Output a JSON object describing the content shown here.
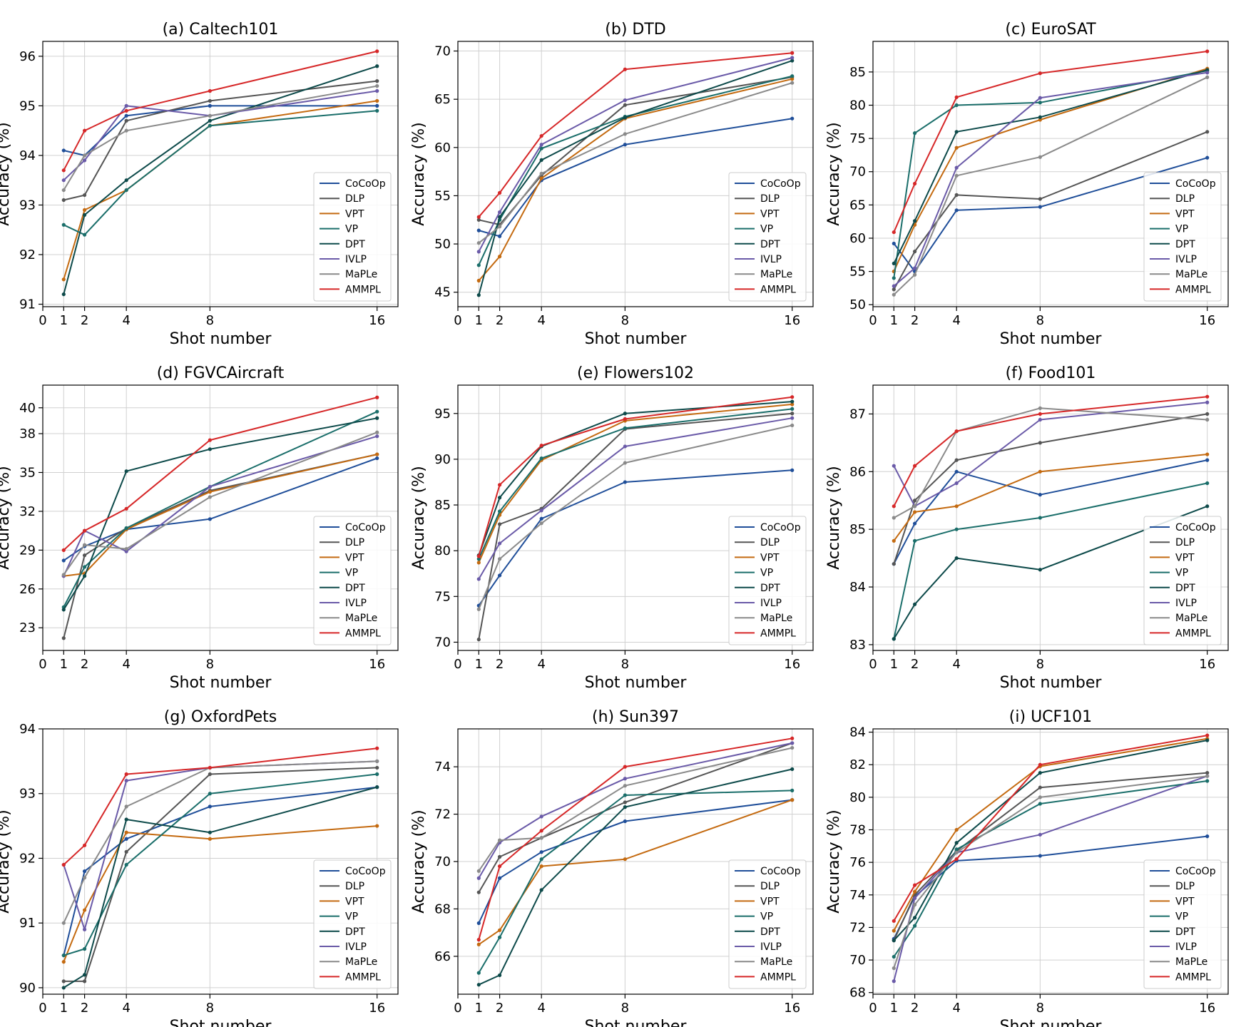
{
  "figure": {
    "xlabel": "Shot number",
    "ylabel": "Accuracy (%)"
  },
  "methods": [
    {
      "name": "CoCoOp",
      "color": "#1f4e99"
    },
    {
      "name": "DLP",
      "color": "#555555"
    },
    {
      "name": "VPT",
      "color": "#c46a10"
    },
    {
      "name": "VP",
      "color": "#1a6e6a"
    },
    {
      "name": "DPT",
      "color": "#0d4a4a"
    },
    {
      "name": "IVLP",
      "color": "#6a5aa8"
    },
    {
      "name": "MaPLe",
      "color": "#8a8a8a"
    },
    {
      "name": "AMMPL",
      "color": "#d62728"
    }
  ],
  "chart_data": [
    {
      "type": "line",
      "title": "(a) Caltech101",
      "xlabel": "Shot number",
      "ylabel": "Accuracy (%)",
      "x": [
        1,
        2,
        4,
        8,
        16
      ],
      "xticks": [
        0,
        1,
        2,
        4,
        8,
        16
      ],
      "xlim": [
        0,
        17
      ],
      "ylim": [
        90.95,
        96.3
      ],
      "yticks": [
        91,
        92,
        93,
        94,
        95,
        96
      ],
      "legend": "lower-right",
      "series": [
        {
          "name": "CoCoOp",
          "values": [
            94.1,
            94.0,
            94.8,
            95.0,
            95.0
          ]
        },
        {
          "name": "DLP",
          "values": [
            93.1,
            93.2,
            94.7,
            95.1,
            95.5
          ]
        },
        {
          "name": "VPT",
          "values": [
            91.5,
            92.9,
            93.3,
            94.6,
            95.1
          ]
        },
        {
          "name": "VP",
          "values": [
            92.6,
            92.4,
            93.3,
            94.6,
            94.9
          ]
        },
        {
          "name": "DPT",
          "values": [
            91.2,
            92.8,
            93.5,
            94.7,
            95.8
          ]
        },
        {
          "name": "IVLP",
          "values": [
            93.5,
            93.9,
            95.0,
            94.8,
            95.3
          ]
        },
        {
          "name": "MaPLe",
          "values": [
            93.3,
            94.0,
            94.5,
            94.8,
            95.4
          ]
        },
        {
          "name": "AMMPL",
          "values": [
            93.7,
            94.5,
            94.9,
            95.3,
            96.1
          ]
        }
      ]
    },
    {
      "type": "line",
      "title": "(b) DTD",
      "xlabel": "Shot number",
      "ylabel": "Accuracy (%)",
      "x": [
        1,
        2,
        4,
        8,
        16
      ],
      "xticks": [
        0,
        1,
        2,
        4,
        8,
        16
      ],
      "xlim": [
        0,
        17
      ],
      "ylim": [
        43.5,
        71.0
      ],
      "yticks": [
        45,
        50,
        55,
        60,
        65,
        70
      ],
      "legend": "lower-right",
      "series": [
        {
          "name": "CoCoOp",
          "values": [
            51.4,
            50.8,
            56.6,
            60.3,
            63.0
          ]
        },
        {
          "name": "DLP",
          "values": [
            52.5,
            52.0,
            57.1,
            64.4,
            67.3
          ]
        },
        {
          "name": "VPT",
          "values": [
            46.2,
            48.7,
            56.8,
            63.0,
            67.1
          ]
        },
        {
          "name": "VP",
          "values": [
            47.8,
            52.5,
            59.9,
            63.2,
            67.4
          ]
        },
        {
          "name": "DPT",
          "values": [
            44.7,
            52.8,
            58.7,
            63.1,
            69.0
          ]
        },
        {
          "name": "IVLP",
          "values": [
            49.2,
            53.3,
            60.3,
            64.9,
            69.3
          ]
        },
        {
          "name": "MaPLe",
          "values": [
            50.1,
            51.8,
            57.3,
            61.4,
            66.7
          ]
        },
        {
          "name": "AMMPL",
          "values": [
            52.8,
            55.3,
            61.2,
            68.1,
            69.8
          ]
        }
      ]
    },
    {
      "type": "line",
      "title": "(c) EuroSAT",
      "xlabel": "Shot number",
      "ylabel": "Accuracy (%)",
      "x": [
        1,
        2,
        4,
        8,
        16
      ],
      "xticks": [
        0,
        1,
        2,
        4,
        8,
        16
      ],
      "xlim": [
        0,
        17
      ],
      "ylim": [
        49.7,
        89.6
      ],
      "yticks": [
        50,
        55,
        60,
        65,
        70,
        75,
        80,
        85
      ],
      "legend": "lower-right",
      "series": [
        {
          "name": "CoCoOp",
          "values": [
            59.2,
            55.0,
            64.2,
            64.7,
            72.1
          ]
        },
        {
          "name": "DLP",
          "values": [
            52.3,
            58.0,
            66.5,
            65.9,
            76.0
          ]
        },
        {
          "name": "VPT",
          "values": [
            55.0,
            62.0,
            73.6,
            77.8,
            85.5
          ]
        },
        {
          "name": "VP",
          "values": [
            54.0,
            75.8,
            80.0,
            80.4,
            85.2
          ]
        },
        {
          "name": "DPT",
          "values": [
            56.2,
            62.6,
            76.0,
            78.2,
            85.3
          ]
        },
        {
          "name": "IVLP",
          "values": [
            52.8,
            55.5,
            70.6,
            81.1,
            84.9
          ]
        },
        {
          "name": "MaPLe",
          "values": [
            51.5,
            54.5,
            69.4,
            72.2,
            84.2
          ]
        },
        {
          "name": "AMMPL",
          "values": [
            60.9,
            68.2,
            81.2,
            84.8,
            88.1
          ]
        }
      ]
    },
    {
      "type": "line",
      "title": "(d) FGVCAircraft",
      "xlabel": "Shot number",
      "ylabel": "Accuracy (%)",
      "x": [
        1,
        2,
        4,
        8,
        16
      ],
      "xticks": [
        0,
        1,
        2,
        4,
        8,
        16
      ],
      "xlim": [
        0,
        17
      ],
      "ylim": [
        21.25,
        41.75
      ],
      "yticks": [
        23,
        26,
        29,
        32,
        35,
        38,
        40
      ],
      "legend": "lower-right",
      "series": [
        {
          "name": "CoCoOp",
          "values": [
            28.2,
            29.3,
            30.6,
            31.4,
            36.1
          ]
        },
        {
          "name": "DLP",
          "values": [
            22.2,
            28.6,
            30.7,
            33.6,
            36.4
          ]
        },
        {
          "name": "VPT",
          "values": [
            27.0,
            27.2,
            30.6,
            33.5,
            36.4
          ]
        },
        {
          "name": "VP",
          "values": [
            24.6,
            27.7,
            30.7,
            33.9,
            39.7
          ]
        },
        {
          "name": "DPT",
          "values": [
            24.4,
            27.0,
            35.1,
            36.8,
            39.2
          ]
        },
        {
          "name": "IVLP",
          "values": [
            27.0,
            30.5,
            28.9,
            33.9,
            37.8
          ]
        },
        {
          "name": "MaPLe",
          "values": [
            27.1,
            29.4,
            29.1,
            33.1,
            38.1
          ]
        },
        {
          "name": "AMMPL",
          "values": [
            29.0,
            30.5,
            32.2,
            37.5,
            40.8
          ]
        }
      ]
    },
    {
      "type": "line",
      "title": "(e) Flowers102",
      "xlabel": "Shot number",
      "ylabel": "Accuracy (%)",
      "x": [
        1,
        2,
        4,
        8,
        16
      ],
      "xticks": [
        0,
        1,
        2,
        4,
        8,
        16
      ],
      "xlim": [
        0,
        17
      ],
      "ylim": [
        69.1,
        98.1
      ],
      "yticks": [
        70,
        75,
        80,
        85,
        90,
        95
      ],
      "legend": "lower-right",
      "series": [
        {
          "name": "CoCoOp",
          "values": [
            74.0,
            77.3,
            83.5,
            87.5,
            88.8
          ]
        },
        {
          "name": "DLP",
          "values": [
            70.3,
            82.9,
            84.6,
            93.3,
            95.0
          ]
        },
        {
          "name": "VPT",
          "values": [
            78.7,
            83.9,
            89.9,
            94.2,
            96.0
          ]
        },
        {
          "name": "VP",
          "values": [
            79.1,
            84.3,
            90.1,
            93.4,
            95.5
          ]
        },
        {
          "name": "DPT",
          "values": [
            79.5,
            85.8,
            91.4,
            95.0,
            96.3
          ]
        },
        {
          "name": "IVLP",
          "values": [
            76.9,
            80.8,
            84.4,
            91.4,
            94.5
          ]
        },
        {
          "name": "MaPLe",
          "values": [
            73.6,
            79.1,
            83.0,
            89.6,
            93.7
          ]
        },
        {
          "name": "AMMPL",
          "values": [
            79.4,
            87.2,
            91.5,
            94.4,
            96.8
          ]
        }
      ]
    },
    {
      "type": "line",
      "title": "(f) Food101",
      "xlabel": "Shot number",
      "ylabel": "Accuracy (%)",
      "x": [
        1,
        2,
        4,
        8,
        16
      ],
      "xticks": [
        0,
        1,
        2,
        4,
        8,
        16
      ],
      "xlim": [
        0,
        17
      ],
      "ylim": [
        82.9,
        87.5
      ],
      "yticks": [
        83,
        84,
        85,
        86,
        87
      ],
      "legend": "lower-right",
      "series": [
        {
          "name": "CoCoOp",
          "values": [
            84.4,
            85.1,
            86.0,
            85.6,
            86.2
          ]
        },
        {
          "name": "DLP",
          "values": [
            84.4,
            85.5,
            86.2,
            86.5,
            87.0
          ]
        },
        {
          "name": "VPT",
          "values": [
            84.8,
            85.3,
            85.4,
            86.0,
            86.3
          ]
        },
        {
          "name": "VP",
          "values": [
            83.1,
            84.8,
            85.0,
            85.2,
            85.8
          ]
        },
        {
          "name": "DPT",
          "values": [
            83.1,
            83.7,
            84.5,
            84.3,
            85.4
          ]
        },
        {
          "name": "IVLP",
          "values": [
            86.1,
            85.4,
            85.8,
            86.9,
            87.2
          ]
        },
        {
          "name": "MaPLe",
          "values": [
            85.2,
            85.4,
            86.7,
            87.1,
            86.9
          ]
        },
        {
          "name": "AMMPL",
          "values": [
            85.4,
            86.1,
            86.7,
            87.0,
            87.3
          ]
        }
      ]
    },
    {
      "type": "line",
      "title": "(g) OxfordPets",
      "xlabel": "Shot number",
      "ylabel": "Accuracy (%)",
      "x": [
        1,
        2,
        4,
        8,
        16
      ],
      "xticks": [
        0,
        1,
        2,
        4,
        8,
        16
      ],
      "xlim": [
        0,
        17
      ],
      "ylim": [
        89.9,
        94.0
      ],
      "yticks": [
        90,
        91,
        92,
        93,
        94
      ],
      "legend": "lower-right",
      "series": [
        {
          "name": "CoCoOp",
          "values": [
            90.5,
            91.8,
            92.3,
            92.8,
            93.1
          ]
        },
        {
          "name": "DLP",
          "values": [
            90.1,
            90.1,
            92.1,
            93.3,
            93.4
          ]
        },
        {
          "name": "VPT",
          "values": [
            90.4,
            91.2,
            92.4,
            92.3,
            92.5
          ]
        },
        {
          "name": "VP",
          "values": [
            90.5,
            90.6,
            91.9,
            93.0,
            93.3
          ]
        },
        {
          "name": "DPT",
          "values": [
            90.0,
            90.2,
            92.6,
            92.4,
            93.1
          ]
        },
        {
          "name": "IVLP",
          "values": [
            91.9,
            90.9,
            93.2,
            93.4,
            93.5
          ]
        },
        {
          "name": "MaPLe",
          "values": [
            91.0,
            91.7,
            92.8,
            93.4,
            93.5
          ]
        },
        {
          "name": "AMMPL",
          "values": [
            91.9,
            92.2,
            93.3,
            93.4,
            93.7
          ]
        }
      ]
    },
    {
      "type": "line",
      "title": "(h) Sun397",
      "xlabel": "Shot number",
      "ylabel": "Accuracy (%)",
      "x": [
        1,
        2,
        4,
        8,
        16
      ],
      "xticks": [
        0,
        1,
        2,
        4,
        8,
        16
      ],
      "xlim": [
        0,
        17
      ],
      "ylim": [
        64.4,
        75.6
      ],
      "yticks": [
        66,
        68,
        70,
        72,
        74
      ],
      "legend": "lower-right",
      "series": [
        {
          "name": "CoCoOp",
          "values": [
            67.4,
            69.3,
            70.4,
            71.7,
            72.6
          ]
        },
        {
          "name": "DLP",
          "values": [
            68.7,
            70.2,
            71.0,
            72.5,
            75.0
          ]
        },
        {
          "name": "VPT",
          "values": [
            66.5,
            67.1,
            69.8,
            70.1,
            72.6
          ]
        },
        {
          "name": "VP",
          "values": [
            65.3,
            66.8,
            70.1,
            72.8,
            73.0
          ]
        },
        {
          "name": "DPT",
          "values": [
            64.8,
            65.2,
            68.8,
            72.3,
            73.9
          ]
        },
        {
          "name": "IVLP",
          "values": [
            69.3,
            70.8,
            71.9,
            73.5,
            75.0
          ]
        },
        {
          "name": "MaPLe",
          "values": [
            69.6,
            70.9,
            71.0,
            73.2,
            74.8
          ]
        },
        {
          "name": "AMMPL",
          "values": [
            66.7,
            69.8,
            71.3,
            74.0,
            75.2
          ]
        }
      ]
    },
    {
      "type": "line",
      "title": "(i) UCF101",
      "xlabel": "Shot number",
      "ylabel": "Accuracy (%)",
      "x": [
        1,
        2,
        4,
        8,
        16
      ],
      "xticks": [
        0,
        1,
        2,
        4,
        8,
        16
      ],
      "xlim": [
        0,
        17
      ],
      "ylim": [
        67.9,
        84.2
      ],
      "yticks": [
        68,
        70,
        72,
        74,
        76,
        78,
        80,
        82,
        84
      ],
      "legend": "lower-right",
      "series": [
        {
          "name": "CoCoOp",
          "values": [
            71.3,
            73.9,
            76.1,
            76.4,
            77.6
          ]
        },
        {
          "name": "DLP",
          "values": [
            71.2,
            74.0,
            76.7,
            80.6,
            81.5
          ]
        },
        {
          "name": "VPT",
          "values": [
            71.8,
            74.2,
            78.0,
            81.9,
            83.6
          ]
        },
        {
          "name": "VP",
          "values": [
            70.2,
            72.1,
            76.8,
            79.6,
            81.0
          ]
        },
        {
          "name": "DPT",
          "values": [
            71.2,
            72.6,
            77.2,
            81.5,
            83.5
          ]
        },
        {
          "name": "IVLP",
          "values": [
            68.7,
            73.8,
            76.6,
            77.7,
            81.3
          ]
        },
        {
          "name": "MaPLe",
          "values": [
            69.5,
            73.4,
            76.6,
            80.0,
            81.3
          ]
        },
        {
          "name": "AMMPL",
          "values": [
            72.4,
            74.6,
            76.2,
            82.0,
            83.8
          ]
        }
      ]
    }
  ]
}
